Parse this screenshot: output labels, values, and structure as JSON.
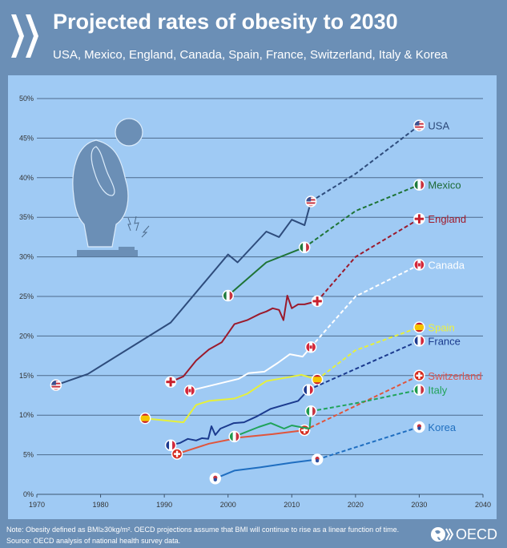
{
  "header": {
    "title": "Projected rates of obesity to 2030",
    "subtitle": "USA, Mexico, England, Canada, Spain, France, Switzerland, Italy & Korea"
  },
  "footer": {
    "note": "Note: Obesity defined as BMI≥30kg/m². OECD projections assume that BMI will continue to rise as a linear function of time.",
    "source": "Source: OECD analysis of national health survey data.",
    "logo_text": "OECD"
  },
  "colors": {
    "background": "#6b8fb6",
    "plot_background": "#9fcaf4",
    "gridline": "#4d6b8c"
  },
  "chart_data": {
    "type": "line",
    "title": "Projected rates of obesity to 2030",
    "xlim": [
      1970,
      2040
    ],
    "ylim": [
      0,
      50
    ],
    "x_ticks": [
      "1970",
      "1980",
      "1990",
      "2000",
      "2010",
      "2020",
      "2030",
      "2040"
    ],
    "y_ticks": [
      "0%",
      "5%",
      "10%",
      "15%",
      "20%",
      "25%",
      "30%",
      "35%",
      "40%",
      "45%",
      "50%"
    ],
    "grid": "horizontal",
    "legend": "direct labels at right",
    "series": [
      {
        "name": "USA",
        "color": "#2e4c7c",
        "label_color": "#2d4a7a",
        "flag": "usa",
        "historical": [
          [
            1973,
            13.8
          ],
          [
            1978,
            15.2
          ],
          [
            1991,
            21.7
          ],
          [
            2000,
            30.3
          ],
          [
            2001.5,
            29.3
          ],
          [
            2006,
            33.2
          ],
          [
            2008,
            32.5
          ],
          [
            2010,
            34.7
          ],
          [
            2012,
            34.0
          ],
          [
            2013,
            37.0
          ]
        ],
        "projected": [
          [
            2013,
            37.0
          ],
          [
            2020,
            40.5
          ],
          [
            2030,
            46.6
          ]
        ]
      },
      {
        "name": "Mexico",
        "color": "#1e7436",
        "label_color": "#1c6a36",
        "flag": "mexico",
        "historical": [
          [
            2000,
            25.1
          ],
          [
            2006,
            29.3
          ],
          [
            2012,
            31.2
          ]
        ],
        "projected": [
          [
            2012,
            31.2
          ],
          [
            2020,
            35.8
          ],
          [
            2030,
            39.1
          ]
        ]
      },
      {
        "name": "England",
        "color": "#9b1a2c",
        "label_color": "#a01c2c",
        "flag": "england",
        "historical": [
          [
            1991,
            14.2
          ],
          [
            1993,
            14.9
          ],
          [
            1995,
            16.9
          ],
          [
            1997,
            18.3
          ],
          [
            1999,
            19.2
          ],
          [
            2001,
            21.5
          ],
          [
            2003,
            22.0
          ],
          [
            2005,
            22.8
          ],
          [
            2006,
            23.1
          ],
          [
            2007,
            23.5
          ],
          [
            2008,
            23.3
          ],
          [
            2008.7,
            22.0
          ],
          [
            2009.3,
            25.1
          ],
          [
            2010,
            23.5
          ],
          [
            2011,
            24.0
          ],
          [
            2012,
            24.0
          ],
          [
            2014,
            24.4
          ]
        ],
        "projected": [
          [
            2014,
            24.4
          ],
          [
            2020,
            30.0
          ],
          [
            2030,
            34.8
          ]
        ]
      },
      {
        "name": "Canada",
        "color": "#ffffff",
        "label_color": "#ffffff",
        "flag": "canada",
        "historical": [
          [
            1994,
            13.1
          ],
          [
            2001.7,
            14.6
          ],
          [
            2003.2,
            15.3
          ],
          [
            2005.7,
            15.5
          ],
          [
            2007.8,
            16.6
          ],
          [
            2009.7,
            17.7
          ],
          [
            2011.7,
            17.4
          ],
          [
            2013,
            18.6
          ]
        ],
        "projected": [
          [
            2013,
            18.6
          ],
          [
            2020,
            25.0
          ],
          [
            2030,
            29.0
          ]
        ]
      },
      {
        "name": "Spain",
        "color": "#e6f03a",
        "label_color": "#eef23c",
        "flag": "spain",
        "historical": [
          [
            1987,
            9.6
          ],
          [
            1993,
            9.1
          ],
          [
            1995,
            11.3
          ],
          [
            1997,
            11.8
          ],
          [
            2001,
            12.1
          ],
          [
            2003,
            12.7
          ],
          [
            2006,
            14.3
          ],
          [
            2009.5,
            14.8
          ],
          [
            2011.5,
            15.1
          ],
          [
            2014,
            14.5
          ]
        ],
        "projected": [
          [
            2014,
            14.5
          ],
          [
            2020,
            18.2
          ],
          [
            2030,
            21.1
          ]
        ]
      },
      {
        "name": "France",
        "color": "#1b3a8e",
        "label_color": "#1a3a8c",
        "flag": "france",
        "historical": [
          [
            1991,
            6.2
          ],
          [
            1992.5,
            6.5
          ],
          [
            1993.7,
            7.0
          ],
          [
            1995,
            6.8
          ],
          [
            1995.9,
            7.1
          ],
          [
            1996.9,
            7.0
          ],
          [
            1997.4,
            8.6
          ],
          [
            1998,
            7.5
          ],
          [
            1998.8,
            8.3
          ],
          [
            2000.9,
            9.0
          ],
          [
            2002.5,
            9.1
          ],
          [
            2004.4,
            9.8
          ],
          [
            2006.7,
            10.8
          ],
          [
            2008.8,
            11.3
          ],
          [
            2011,
            11.8
          ],
          [
            2012.6,
            13.2
          ]
        ],
        "projected": [
          [
            2012.6,
            13.2
          ],
          [
            2030,
            19.4
          ]
        ]
      },
      {
        "name": "Switzerland",
        "color": "#e0553c",
        "label_color": "#d9534f",
        "flag": "switzerland",
        "historical": [
          [
            1992,
            5.1
          ],
          [
            1997,
            6.4
          ],
          [
            2002,
            7.2
          ],
          [
            2007,
            7.6
          ],
          [
            2012,
            8.1
          ]
        ],
        "projected": [
          [
            2012,
            8.1
          ],
          [
            2030,
            15.0
          ]
        ]
      },
      {
        "name": "Italy",
        "color": "#20a35a",
        "label_color": "#22a35a",
        "flag": "italy",
        "historical": [
          [
            2001,
            7.3
          ],
          [
            2004.8,
            8.5
          ],
          [
            2006.7,
            9.0
          ],
          [
            2008.8,
            8.3
          ],
          [
            2010,
            8.7
          ],
          [
            2011.3,
            8.5
          ],
          [
            2012.8,
            8.3
          ],
          [
            2013,
            10.5
          ]
        ],
        "projected": [
          [
            2013,
            10.5
          ],
          [
            2020,
            11.5
          ],
          [
            2030,
            13.2
          ]
        ]
      },
      {
        "name": "Korea",
        "color": "#1f6ec0",
        "label_color": "#1f6fbf",
        "flag": "korea",
        "historical": [
          [
            1998,
            2.0
          ],
          [
            2001,
            3.0
          ],
          [
            2005,
            3.4
          ],
          [
            2010,
            4.0
          ],
          [
            2014,
            4.4
          ]
        ],
        "projected": [
          [
            2014,
            4.4
          ],
          [
            2030,
            8.5
          ]
        ]
      }
    ]
  }
}
